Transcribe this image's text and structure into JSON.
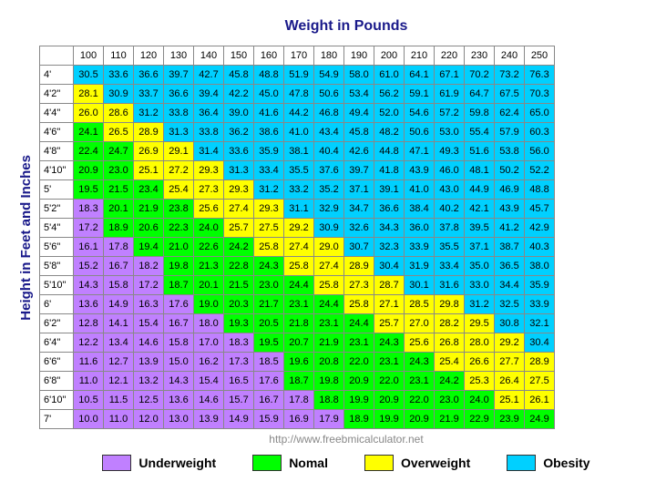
{
  "title": "Weight in Pounds",
  "ylabel": "Height in Feet and Inches",
  "source": "http://www.freebmicalculator.net",
  "colors": {
    "underweight": "#c080ff",
    "normal": "#00ff00",
    "overweight": "#ffff00",
    "obesity": "#00d0ff",
    "header_bg": "#ffffff",
    "border": "#888888",
    "title_text": "#1a1a8a",
    "text": "#000000"
  },
  "legend": [
    {
      "label": "Underweight",
      "key": "underweight"
    },
    {
      "label": "Nomal",
      "key": "normal"
    },
    {
      "label": "Overweight",
      "key": "overweight"
    },
    {
      "label": "Obesity",
      "key": "obesity"
    }
  ],
  "columns": [
    "100",
    "110",
    "120",
    "130",
    "140",
    "150",
    "160",
    "170",
    "180",
    "190",
    "200",
    "210",
    "220",
    "230",
    "240",
    "250"
  ],
  "rows": [
    {
      "h": "4'",
      "cells": [
        [
          "30.5",
          "ob"
        ],
        [
          "33.6",
          "ob"
        ],
        [
          "36.6",
          "ob"
        ],
        [
          "39.7",
          "ob"
        ],
        [
          "42.7",
          "ob"
        ],
        [
          "45.8",
          "ob"
        ],
        [
          "48.8",
          "ob"
        ],
        [
          "51.9",
          "ob"
        ],
        [
          "54.9",
          "ob"
        ],
        [
          "58.0",
          "ob"
        ],
        [
          "61.0",
          "ob"
        ],
        [
          "64.1",
          "ob"
        ],
        [
          "67.1",
          "ob"
        ],
        [
          "70.2",
          "ob"
        ],
        [
          "73.2",
          "ob"
        ],
        [
          "76.3",
          "ob"
        ]
      ]
    },
    {
      "h": "4'2\"",
      "cells": [
        [
          "28.1",
          "ov"
        ],
        [
          "30.9",
          "ob"
        ],
        [
          "33.7",
          "ob"
        ],
        [
          "36.6",
          "ob"
        ],
        [
          "39.4",
          "ob"
        ],
        [
          "42.2",
          "ob"
        ],
        [
          "45.0",
          "ob"
        ],
        [
          "47.8",
          "ob"
        ],
        [
          "50.6",
          "ob"
        ],
        [
          "53.4",
          "ob"
        ],
        [
          "56.2",
          "ob"
        ],
        [
          "59.1",
          "ob"
        ],
        [
          "61.9",
          "ob"
        ],
        [
          "64.7",
          "ob"
        ],
        [
          "67.5",
          "ob"
        ],
        [
          "70.3",
          "ob"
        ]
      ]
    },
    {
      "h": "4'4\"",
      "cells": [
        [
          "26.0",
          "ov"
        ],
        [
          "28.6",
          "ov"
        ],
        [
          "31.2",
          "ob"
        ],
        [
          "33.8",
          "ob"
        ],
        [
          "36.4",
          "ob"
        ],
        [
          "39.0",
          "ob"
        ],
        [
          "41.6",
          "ob"
        ],
        [
          "44.2",
          "ob"
        ],
        [
          "46.8",
          "ob"
        ],
        [
          "49.4",
          "ob"
        ],
        [
          "52.0",
          "ob"
        ],
        [
          "54.6",
          "ob"
        ],
        [
          "57.2",
          "ob"
        ],
        [
          "59.8",
          "ob"
        ],
        [
          "62.4",
          "ob"
        ],
        [
          "65.0",
          "ob"
        ]
      ]
    },
    {
      "h": "4'6\"",
      "cells": [
        [
          "24.1",
          "no"
        ],
        [
          "26.5",
          "ov"
        ],
        [
          "28.9",
          "ov"
        ],
        [
          "31.3",
          "ob"
        ],
        [
          "33.8",
          "ob"
        ],
        [
          "36.2",
          "ob"
        ],
        [
          "38.6",
          "ob"
        ],
        [
          "41.0",
          "ob"
        ],
        [
          "43.4",
          "ob"
        ],
        [
          "45.8",
          "ob"
        ],
        [
          "48.2",
          "ob"
        ],
        [
          "50.6",
          "ob"
        ],
        [
          "53.0",
          "ob"
        ],
        [
          "55.4",
          "ob"
        ],
        [
          "57.9",
          "ob"
        ],
        [
          "60.3",
          "ob"
        ]
      ]
    },
    {
      "h": "4'8\"",
      "cells": [
        [
          "22.4",
          "no"
        ],
        [
          "24.7",
          "no"
        ],
        [
          "26.9",
          "ov"
        ],
        [
          "29.1",
          "ov"
        ],
        [
          "31.4",
          "ob"
        ],
        [
          "33.6",
          "ob"
        ],
        [
          "35.9",
          "ob"
        ],
        [
          "38.1",
          "ob"
        ],
        [
          "40.4",
          "ob"
        ],
        [
          "42.6",
          "ob"
        ],
        [
          "44.8",
          "ob"
        ],
        [
          "47.1",
          "ob"
        ],
        [
          "49.3",
          "ob"
        ],
        [
          "51.6",
          "ob"
        ],
        [
          "53.8",
          "ob"
        ],
        [
          "56.0",
          "ob"
        ]
      ]
    },
    {
      "h": "4'10\"",
      "cells": [
        [
          "20.9",
          "no"
        ],
        [
          "23.0",
          "no"
        ],
        [
          "25.1",
          "ov"
        ],
        [
          "27.2",
          "ov"
        ],
        [
          "29.3",
          "ov"
        ],
        [
          "31.3",
          "ob"
        ],
        [
          "33.4",
          "ob"
        ],
        [
          "35.5",
          "ob"
        ],
        [
          "37.6",
          "ob"
        ],
        [
          "39.7",
          "ob"
        ],
        [
          "41.8",
          "ob"
        ],
        [
          "43.9",
          "ob"
        ],
        [
          "46.0",
          "ob"
        ],
        [
          "48.1",
          "ob"
        ],
        [
          "50.2",
          "ob"
        ],
        [
          "52.2",
          "ob"
        ]
      ]
    },
    {
      "h": "5'",
      "cells": [
        [
          "19.5",
          "no"
        ],
        [
          "21.5",
          "no"
        ],
        [
          "23.4",
          "no"
        ],
        [
          "25.4",
          "ov"
        ],
        [
          "27.3",
          "ov"
        ],
        [
          "29.3",
          "ov"
        ],
        [
          "31.2",
          "ob"
        ],
        [
          "33.2",
          "ob"
        ],
        [
          "35.2",
          "ob"
        ],
        [
          "37.1",
          "ob"
        ],
        [
          "39.1",
          "ob"
        ],
        [
          "41.0",
          "ob"
        ],
        [
          "43.0",
          "ob"
        ],
        [
          "44.9",
          "ob"
        ],
        [
          "46.9",
          "ob"
        ],
        [
          "48.8",
          "ob"
        ]
      ]
    },
    {
      "h": "5'2\"",
      "cells": [
        [
          "18.3",
          "uw"
        ],
        [
          "20.1",
          "no"
        ],
        [
          "21.9",
          "no"
        ],
        [
          "23.8",
          "no"
        ],
        [
          "25.6",
          "ov"
        ],
        [
          "27.4",
          "ov"
        ],
        [
          "29.3",
          "ov"
        ],
        [
          "31.1",
          "ob"
        ],
        [
          "32.9",
          "ob"
        ],
        [
          "34.7",
          "ob"
        ],
        [
          "36.6",
          "ob"
        ],
        [
          "38.4",
          "ob"
        ],
        [
          "40.2",
          "ob"
        ],
        [
          "42.1",
          "ob"
        ],
        [
          "43.9",
          "ob"
        ],
        [
          "45.7",
          "ob"
        ]
      ]
    },
    {
      "h": "5'4\"",
      "cells": [
        [
          "17.2",
          "uw"
        ],
        [
          "18.9",
          "no"
        ],
        [
          "20.6",
          "no"
        ],
        [
          "22.3",
          "no"
        ],
        [
          "24.0",
          "no"
        ],
        [
          "25.7",
          "ov"
        ],
        [
          "27.5",
          "ov"
        ],
        [
          "29.2",
          "ov"
        ],
        [
          "30.9",
          "ob"
        ],
        [
          "32.6",
          "ob"
        ],
        [
          "34.3",
          "ob"
        ],
        [
          "36.0",
          "ob"
        ],
        [
          "37.8",
          "ob"
        ],
        [
          "39.5",
          "ob"
        ],
        [
          "41.2",
          "ob"
        ],
        [
          "42.9",
          "ob"
        ]
      ]
    },
    {
      "h": "5'6\"",
      "cells": [
        [
          "16.1",
          "uw"
        ],
        [
          "17.8",
          "uw"
        ],
        [
          "19.4",
          "no"
        ],
        [
          "21.0",
          "no"
        ],
        [
          "22.6",
          "no"
        ],
        [
          "24.2",
          "no"
        ],
        [
          "25.8",
          "ov"
        ],
        [
          "27.4",
          "ov"
        ],
        [
          "29.0",
          "ov"
        ],
        [
          "30.7",
          "ob"
        ],
        [
          "32.3",
          "ob"
        ],
        [
          "33.9",
          "ob"
        ],
        [
          "35.5",
          "ob"
        ],
        [
          "37.1",
          "ob"
        ],
        [
          "38.7",
          "ob"
        ],
        [
          "40.3",
          "ob"
        ]
      ]
    },
    {
      "h": "5'8\"",
      "cells": [
        [
          "15.2",
          "uw"
        ],
        [
          "16.7",
          "uw"
        ],
        [
          "18.2",
          "uw"
        ],
        [
          "19.8",
          "no"
        ],
        [
          "21.3",
          "no"
        ],
        [
          "22.8",
          "no"
        ],
        [
          "24.3",
          "no"
        ],
        [
          "25.8",
          "ov"
        ],
        [
          "27.4",
          "ov"
        ],
        [
          "28.9",
          "ov"
        ],
        [
          "30.4",
          "ob"
        ],
        [
          "31.9",
          "ob"
        ],
        [
          "33.4",
          "ob"
        ],
        [
          "35.0",
          "ob"
        ],
        [
          "36.5",
          "ob"
        ],
        [
          "38.0",
          "ob"
        ]
      ]
    },
    {
      "h": "5'10\"",
      "cells": [
        [
          "14.3",
          "uw"
        ],
        [
          "15.8",
          "uw"
        ],
        [
          "17.2",
          "uw"
        ],
        [
          "18.7",
          "no"
        ],
        [
          "20.1",
          "no"
        ],
        [
          "21.5",
          "no"
        ],
        [
          "23.0",
          "no"
        ],
        [
          "24.4",
          "no"
        ],
        [
          "25.8",
          "ov"
        ],
        [
          "27.3",
          "ov"
        ],
        [
          "28.7",
          "ov"
        ],
        [
          "30.1",
          "ob"
        ],
        [
          "31.6",
          "ob"
        ],
        [
          "33.0",
          "ob"
        ],
        [
          "34.4",
          "ob"
        ],
        [
          "35.9",
          "ob"
        ]
      ]
    },
    {
      "h": "6'",
      "cells": [
        [
          "13.6",
          "uw"
        ],
        [
          "14.9",
          "uw"
        ],
        [
          "16.3",
          "uw"
        ],
        [
          "17.6",
          "uw"
        ],
        [
          "19.0",
          "no"
        ],
        [
          "20.3",
          "no"
        ],
        [
          "21.7",
          "no"
        ],
        [
          "23.1",
          "no"
        ],
        [
          "24.4",
          "no"
        ],
        [
          "25.8",
          "ov"
        ],
        [
          "27.1",
          "ov"
        ],
        [
          "28.5",
          "ov"
        ],
        [
          "29.8",
          "ov"
        ],
        [
          "31.2",
          "ob"
        ],
        [
          "32.5",
          "ob"
        ],
        [
          "33.9",
          "ob"
        ]
      ]
    },
    {
      "h": "6'2\"",
      "cells": [
        [
          "12.8",
          "uw"
        ],
        [
          "14.1",
          "uw"
        ],
        [
          "15.4",
          "uw"
        ],
        [
          "16.7",
          "uw"
        ],
        [
          "18.0",
          "uw"
        ],
        [
          "19.3",
          "no"
        ],
        [
          "20.5",
          "no"
        ],
        [
          "21.8",
          "no"
        ],
        [
          "23.1",
          "no"
        ],
        [
          "24.4",
          "no"
        ],
        [
          "25.7",
          "ov"
        ],
        [
          "27.0",
          "ov"
        ],
        [
          "28.2",
          "ov"
        ],
        [
          "29.5",
          "ov"
        ],
        [
          "30.8",
          "ob"
        ],
        [
          "32.1",
          "ob"
        ]
      ]
    },
    {
      "h": "6'4\"",
      "cells": [
        [
          "12.2",
          "uw"
        ],
        [
          "13.4",
          "uw"
        ],
        [
          "14.6",
          "uw"
        ],
        [
          "15.8",
          "uw"
        ],
        [
          "17.0",
          "uw"
        ],
        [
          "18.3",
          "uw"
        ],
        [
          "19.5",
          "no"
        ],
        [
          "20.7",
          "no"
        ],
        [
          "21.9",
          "no"
        ],
        [
          "23.1",
          "no"
        ],
        [
          "24.3",
          "no"
        ],
        [
          "25.6",
          "ov"
        ],
        [
          "26.8",
          "ov"
        ],
        [
          "28.0",
          "ov"
        ],
        [
          "29.2",
          "ov"
        ],
        [
          "30.4",
          "ob"
        ]
      ]
    },
    {
      "h": "6'6\"",
      "cells": [
        [
          "11.6",
          "uw"
        ],
        [
          "12.7",
          "uw"
        ],
        [
          "13.9",
          "uw"
        ],
        [
          "15.0",
          "uw"
        ],
        [
          "16.2",
          "uw"
        ],
        [
          "17.3",
          "uw"
        ],
        [
          "18.5",
          "uw"
        ],
        [
          "19.6",
          "no"
        ],
        [
          "20.8",
          "no"
        ],
        [
          "22.0",
          "no"
        ],
        [
          "23.1",
          "no"
        ],
        [
          "24.3",
          "no"
        ],
        [
          "25.4",
          "ov"
        ],
        [
          "26.6",
          "ov"
        ],
        [
          "27.7",
          "ov"
        ],
        [
          "28.9",
          "ov"
        ]
      ]
    },
    {
      "h": "6'8\"",
      "cells": [
        [
          "11.0",
          "uw"
        ],
        [
          "12.1",
          "uw"
        ],
        [
          "13.2",
          "uw"
        ],
        [
          "14.3",
          "uw"
        ],
        [
          "15.4",
          "uw"
        ],
        [
          "16.5",
          "uw"
        ],
        [
          "17.6",
          "uw"
        ],
        [
          "18.7",
          "no"
        ],
        [
          "19.8",
          "no"
        ],
        [
          "20.9",
          "no"
        ],
        [
          "22.0",
          "no"
        ],
        [
          "23.1",
          "no"
        ],
        [
          "24.2",
          "no"
        ],
        [
          "25.3",
          "ov"
        ],
        [
          "26.4",
          "ov"
        ],
        [
          "27.5",
          "ov"
        ]
      ]
    },
    {
      "h": "6'10\"",
      "cells": [
        [
          "10.5",
          "uw"
        ],
        [
          "11.5",
          "uw"
        ],
        [
          "12.5",
          "uw"
        ],
        [
          "13.6",
          "uw"
        ],
        [
          "14.6",
          "uw"
        ],
        [
          "15.7",
          "uw"
        ],
        [
          "16.7",
          "uw"
        ],
        [
          "17.8",
          "uw"
        ],
        [
          "18.8",
          "no"
        ],
        [
          "19.9",
          "no"
        ],
        [
          "20.9",
          "no"
        ],
        [
          "22.0",
          "no"
        ],
        [
          "23.0",
          "no"
        ],
        [
          "24.0",
          "no"
        ],
        [
          "25.1",
          "ov"
        ],
        [
          "26.1",
          "ov"
        ]
      ]
    },
    {
      "h": "7'",
      "cells": [
        [
          "10.0",
          "uw"
        ],
        [
          "11.0",
          "uw"
        ],
        [
          "12.0",
          "uw"
        ],
        [
          "13.0",
          "uw"
        ],
        [
          "13.9",
          "uw"
        ],
        [
          "14.9",
          "uw"
        ],
        [
          "15.9",
          "uw"
        ],
        [
          "16.9",
          "uw"
        ],
        [
          "17.9",
          "uw"
        ],
        [
          "18.9",
          "no"
        ],
        [
          "19.9",
          "no"
        ],
        [
          "20.9",
          "no"
        ],
        [
          "21.9",
          "no"
        ],
        [
          "22.9",
          "no"
        ],
        [
          "23.9",
          "no"
        ],
        [
          "24.9",
          "no"
        ]
      ]
    }
  ]
}
